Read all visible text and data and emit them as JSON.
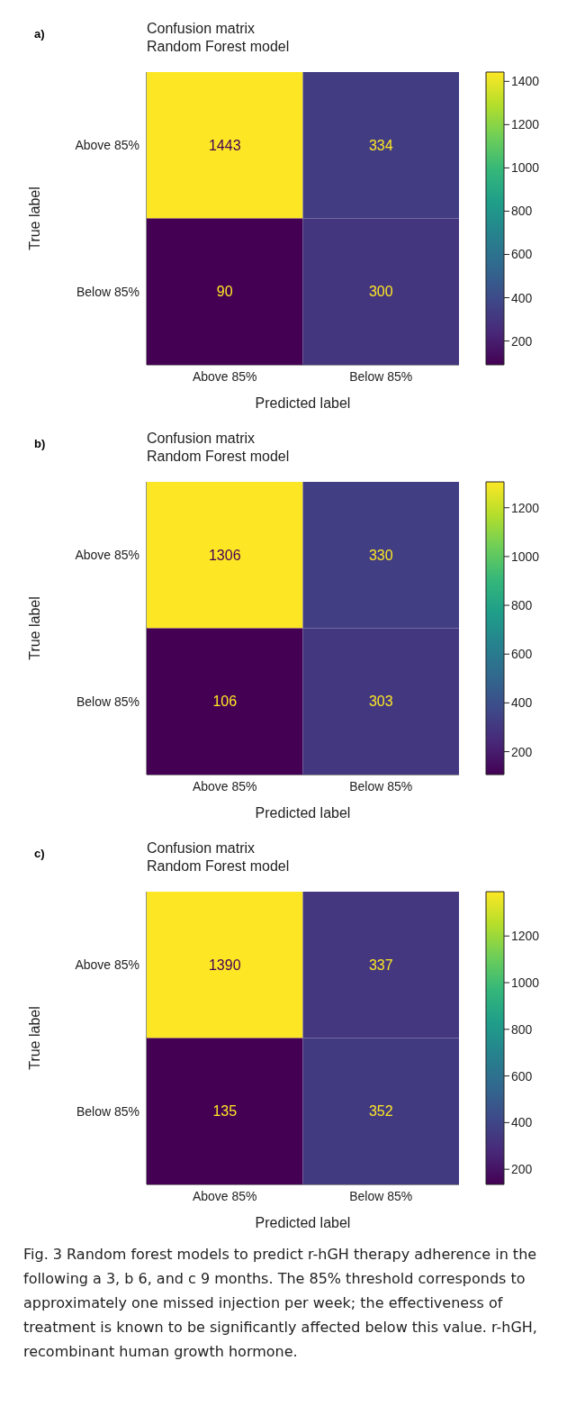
{
  "chart_data": [
    {
      "type": "heatmap",
      "title": "Confusion matrix",
      "subtitle": "Random Forest model",
      "xlabel": "Predicted label",
      "ylabel": "True label",
      "categories": [
        "Above 85%",
        "Below 85%"
      ],
      "y_categories": [
        "Above 85%",
        "Below 85%"
      ],
      "cells": [
        [
          1443,
          334
        ],
        [
          90,
          300
        ]
      ],
      "data_labels": true,
      "clim": [
        90,
        1443
      ],
      "cticks": [
        200,
        400,
        600,
        800,
        1000,
        1200,
        1400
      ],
      "annotations": [
        "a)"
      ]
    },
    {
      "type": "heatmap",
      "title": "Confusion matrix",
      "subtitle": "Random Forest model",
      "xlabel": "Predicted label",
      "ylabel": "True label",
      "categories": [
        "Above 85%",
        "Below 85%"
      ],
      "y_categories": [
        "Above 85%",
        "Below 85%"
      ],
      "cells": [
        [
          1306,
          330
        ],
        [
          106,
          303
        ]
      ],
      "data_labels": true,
      "clim": [
        106,
        1306
      ],
      "cticks": [
        200,
        400,
        600,
        800,
        1000,
        1200
      ],
      "annotations": [
        "b)"
      ]
    },
    {
      "type": "heatmap",
      "title": "Confusion matrix",
      "subtitle": "Random Forest model",
      "xlabel": "Predicted label",
      "ylabel": "True label",
      "categories": [
        "Above 85%",
        "Below 85%"
      ],
      "y_categories": [
        "Above 85%",
        "Below 85%"
      ],
      "cells": [
        [
          1390,
          337
        ],
        [
          135,
          352
        ]
      ],
      "data_labels": true,
      "clim": [
        135,
        1390
      ],
      "cticks": [
        200,
        400,
        600,
        800,
        1000,
        1200
      ],
      "annotations": [
        "c)",
        "Fig. 3 Random forest models to predict r-hGH therapy adherence in the following a 3, b 6, and c 9 months. The 85% threshold corresponds to approximately one missed injection per week; the effectiveness of treatment is known to be significantly affected below this value. r-hGH, recombinant human growth hormone."
      ]
    }
  ]
}
